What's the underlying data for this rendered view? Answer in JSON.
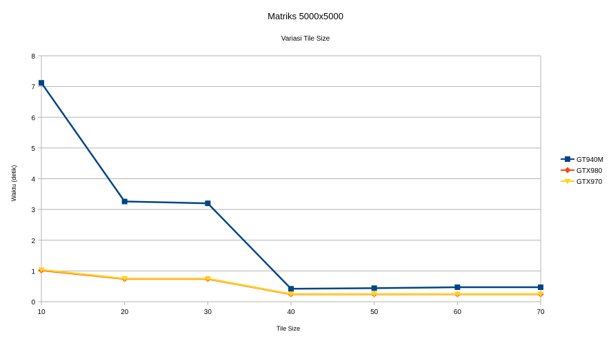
{
  "chart_data": {
    "type": "line",
    "title": "Matriks 5000x5000",
    "subtitle": "Variasi Tile Size",
    "xlabel": "Tile Size",
    "ylabel": "Waktu (detik)",
    "x": [
      10,
      20,
      30,
      40,
      50,
      60,
      70
    ],
    "ylim": [
      0,
      8
    ],
    "yticks": [
      0,
      1,
      2,
      3,
      4,
      5,
      6,
      7,
      8
    ],
    "grid": true,
    "legend_position": "right",
    "series": [
      {
        "name": "GT940M",
        "color": "#004586",
        "marker": "square",
        "values": [
          7.12,
          3.26,
          3.2,
          0.42,
          0.44,
          0.47,
          0.47
        ]
      },
      {
        "name": "GTX980",
        "color": "#ff420e",
        "marker": "diamond",
        "values": [
          1.02,
          0.74,
          0.74,
          0.24,
          0.24,
          0.24,
          0.24
        ]
      },
      {
        "name": "GTX970",
        "color": "#ffd320",
        "marker": "triangle",
        "values": [
          1.04,
          0.75,
          0.75,
          0.25,
          0.25,
          0.25,
          0.25
        ]
      }
    ]
  }
}
